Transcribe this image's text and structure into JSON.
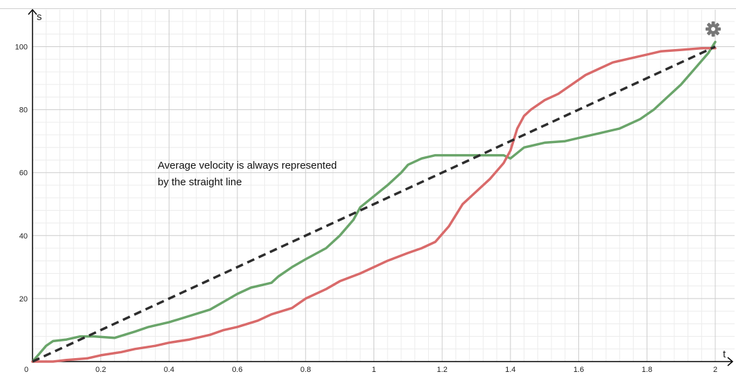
{
  "chart_data": {
    "type": "line",
    "xlabel": "t",
    "ylabel": "s",
    "xlim": [
      0,
      2.02
    ],
    "ylim": [
      0,
      110
    ],
    "x_ticks": [
      "0",
      "0.2",
      "0.4",
      "0.6",
      "0.8",
      "1",
      "1.2",
      "1.4",
      "1.6",
      "1.8",
      "2"
    ],
    "y_ticks": [
      "20",
      "40",
      "60",
      "80",
      "100"
    ],
    "grid": true,
    "annotation": [
      "Average velocity is always represented",
      "by the straight line"
    ],
    "series": [
      {
        "color": "#2d2d2d",
        "style": "dashed",
        "x": [
          0,
          2
        ],
        "y": [
          0,
          100
        ]
      },
      {
        "color": "#6aa56a",
        "style": "solid",
        "x": [
          0,
          0.02,
          0.04,
          0.06,
          0.1,
          0.14,
          0.18,
          0.24,
          0.3,
          0.34,
          0.4,
          0.46,
          0.52,
          0.56,
          0.6,
          0.64,
          0.7,
          0.72,
          0.76,
          0.8,
          0.86,
          0.9,
          0.94,
          0.96,
          1.0,
          1.04,
          1.08,
          1.1,
          1.14,
          1.18,
          1.22,
          1.28,
          1.34,
          1.38,
          1.4,
          1.44,
          1.5,
          1.56,
          1.6,
          1.66,
          1.72,
          1.78,
          1.82,
          1.86,
          1.9,
          1.94,
          1.98,
          2.0
        ],
        "y": [
          0,
          2.5,
          5,
          6.5,
          7,
          8,
          8,
          7.5,
          9.5,
          11,
          12.5,
          14.5,
          16.5,
          19,
          21.5,
          23.5,
          25,
          27,
          30,
          32.5,
          36,
          40,
          45,
          49,
          52.5,
          56,
          60,
          62.5,
          64.5,
          65.5,
          65.5,
          65.5,
          65.5,
          65.5,
          64.5,
          68,
          69.5,
          70,
          71,
          72.5,
          74,
          77,
          80,
          84,
          88,
          93,
          98,
          101.5
        ]
      },
      {
        "color": "#d96a6a",
        "style": "solid",
        "x": [
          0,
          0.06,
          0.1,
          0.16,
          0.2,
          0.26,
          0.3,
          0.36,
          0.4,
          0.46,
          0.52,
          0.56,
          0.6,
          0.66,
          0.7,
          0.76,
          0.8,
          0.86,
          0.9,
          0.96,
          1.0,
          1.04,
          1.1,
          1.14,
          1.18,
          1.22,
          1.26,
          1.3,
          1.34,
          1.38,
          1.4,
          1.42,
          1.44,
          1.46,
          1.5,
          1.54,
          1.58,
          1.62,
          1.66,
          1.7,
          1.76,
          1.8,
          1.84,
          1.9,
          1.96,
          2.0
        ],
        "y": [
          0,
          0,
          0.5,
          1,
          2,
          3,
          4,
          5,
          6,
          7,
          8.5,
          10,
          11,
          13,
          15,
          17,
          20,
          23,
          25.5,
          28,
          30,
          32,
          34.5,
          36,
          38,
          43,
          50,
          54,
          58,
          63,
          67,
          74,
          78,
          80,
          83,
          85,
          88,
          91,
          93,
          95,
          96.5,
          97.5,
          98.5,
          99,
          99.5,
          99.5
        ]
      }
    ]
  },
  "icons": {
    "settings": "gear-icon"
  },
  "colors": {
    "grid_major": "#cccccc",
    "grid_minor": "#ececec",
    "axis": "#000000",
    "settings_icon": "#777777"
  }
}
